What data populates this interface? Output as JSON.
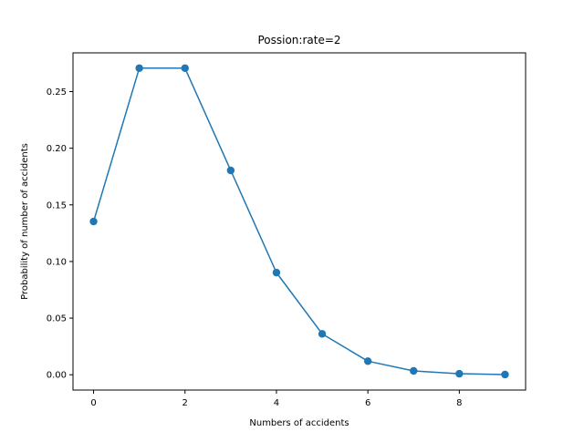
{
  "chart_data": {
    "type": "line",
    "title": "Possion:rate=2",
    "xlabel": "Numbers of accidents",
    "ylabel": "Probability of number of accidents",
    "x": [
      0,
      1,
      2,
      3,
      4,
      5,
      6,
      7,
      8,
      9
    ],
    "series": [
      {
        "values": [
          0.1353,
          0.2707,
          0.2707,
          0.1804,
          0.0902,
          0.0361,
          0.012,
          0.0034,
          0.0009,
          0.0002
        ],
        "color": "#1f77b4",
        "marker": "circle"
      }
    ],
    "xlim": [
      -0.45,
      9.45
    ],
    "ylim": [
      -0.0135,
      0.2842
    ],
    "xticks": [
      0,
      2,
      4,
      6,
      8
    ],
    "xtick_labels": [
      "0",
      "2",
      "4",
      "6",
      "8"
    ],
    "yticks": [
      0.0,
      0.05,
      0.1,
      0.15,
      0.2,
      0.25
    ],
    "ytick_labels": [
      "0.00",
      "0.05",
      "0.10",
      "0.15",
      "0.20",
      "0.25"
    ],
    "grid": false,
    "legend": "none"
  }
}
